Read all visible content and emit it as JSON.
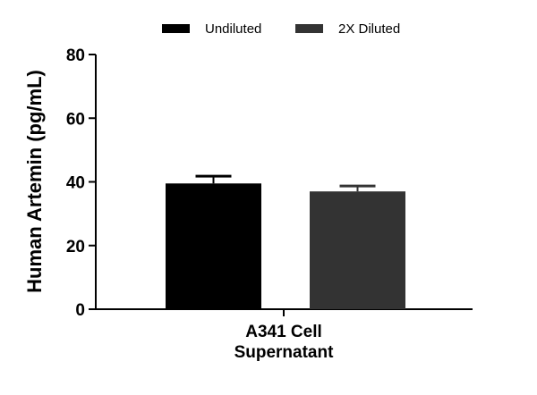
{
  "chart_data": {
    "type": "bar",
    "categories": [
      "A341 Cell Supernatant"
    ],
    "category_label_lines": [
      "A341 Cell",
      "Supernatant"
    ],
    "series": [
      {
        "name": "Undiluted",
        "values": [
          39.5
        ],
        "error": [
          2.3
        ],
        "color": "#000000"
      },
      {
        "name": "2X Diluted",
        "values": [
          37.0
        ],
        "error": [
          1.7
        ],
        "color": "#333333"
      }
    ],
    "ylabel": "Human Artemin (pg/mL)",
    "xlabel": "",
    "ylim": [
      0,
      80
    ],
    "yticks": [
      0,
      20,
      40,
      60,
      80
    ],
    "legend_position": "top",
    "grid": false
  }
}
